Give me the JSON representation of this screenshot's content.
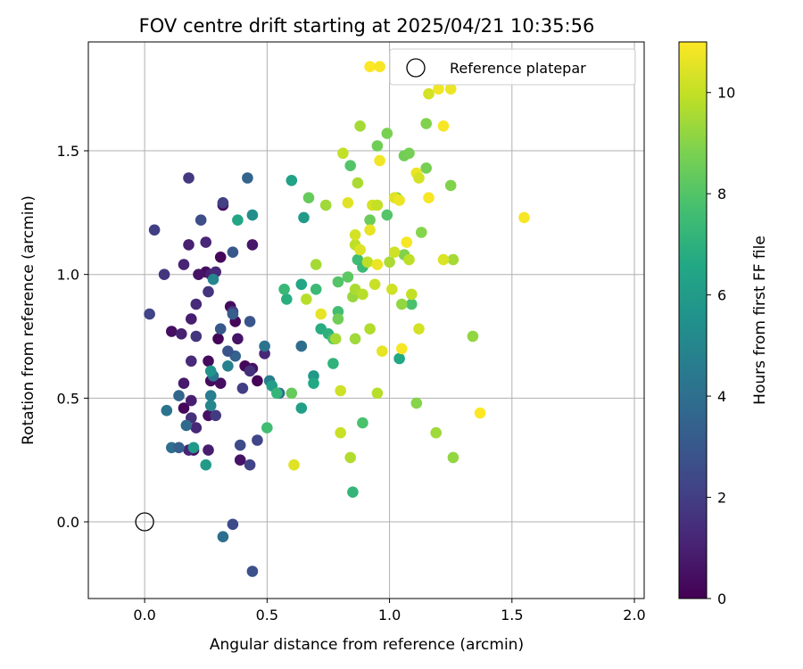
{
  "chart_data": {
    "type": "scatter",
    "title": "FOV centre drift starting at 2025/04/21 10:35:56",
    "xlabel": "Angular distance from reference (arcmin)",
    "ylabel": "Rotation from reference (arcmin)",
    "xlim": [
      -0.23,
      2.04
    ],
    "ylim": [
      -0.31,
      1.94
    ],
    "xticks": [
      0.0,
      0.5,
      1.0,
      1.5,
      2.0
    ],
    "xtick_labels": [
      "0.0",
      "0.5",
      "1.0",
      "1.5",
      "2.0"
    ],
    "yticks": [
      0.0,
      0.5,
      1.0,
      1.5
    ],
    "ytick_labels": [
      "0.0",
      "0.5",
      "1.0",
      "1.5"
    ],
    "grid": true,
    "legend": {
      "position": "top-right",
      "entries": [
        "Reference platepar"
      ]
    },
    "reference_point": {
      "x": 0.0,
      "y": 0.0,
      "label": "Reference platepar"
    },
    "colorbar": {
      "label": "Hours from first FF file",
      "min": 0,
      "max": 11,
      "ticks": [
        0,
        2,
        4,
        6,
        8,
        10
      ],
      "colormap": "viridis"
    },
    "points": [
      {
        "x": 0.32,
        "y": 1.28,
        "c": 0.3
      },
      {
        "x": 0.31,
        "y": 1.07,
        "c": 0.2
      },
      {
        "x": 0.25,
        "y": 1.01,
        "c": 0.4
      },
      {
        "x": 0.22,
        "y": 1.0,
        "c": 0.6
      },
      {
        "x": 0.27,
        "y": 1.0,
        "c": 1.0
      },
      {
        "x": 0.35,
        "y": 0.87,
        "c": 0.3
      },
      {
        "x": 0.37,
        "y": 0.81,
        "c": 0.2
      },
      {
        "x": 0.11,
        "y": 0.77,
        "c": 0.4
      },
      {
        "x": 0.3,
        "y": 0.74,
        "c": 0.1
      },
      {
        "x": 0.38,
        "y": 0.74,
        "c": 0.6
      },
      {
        "x": 0.41,
        "y": 0.63,
        "c": 0.2
      },
      {
        "x": 0.26,
        "y": 0.65,
        "c": 0.3
      },
      {
        "x": 0.44,
        "y": 0.62,
        "c": 0.5
      },
      {
        "x": 0.46,
        "y": 0.57,
        "c": 0.1
      },
      {
        "x": 0.27,
        "y": 0.57,
        "c": 0.3
      },
      {
        "x": 0.31,
        "y": 0.56,
        "c": 0.4
      },
      {
        "x": 0.16,
        "y": 0.46,
        "c": 0.2
      },
      {
        "x": 0.16,
        "y": 0.56,
        "c": 0.8
      },
      {
        "x": 0.2,
        "y": 0.29,
        "c": 0.4
      },
      {
        "x": 0.18,
        "y": 0.29,
        "c": 1.1
      },
      {
        "x": 0.26,
        "y": 0.29,
        "c": 0.9
      },
      {
        "x": 0.39,
        "y": 0.25,
        "c": 0.6
      },
      {
        "x": 0.26,
        "y": 0.43,
        "c": 0.5
      },
      {
        "x": 0.19,
        "y": 0.49,
        "c": 0.9
      },
      {
        "x": 0.19,
        "y": 0.42,
        "c": 1.5
      },
      {
        "x": 0.21,
        "y": 0.38,
        "c": 1.2
      },
      {
        "x": 0.15,
        "y": 0.76,
        "c": 1.0
      },
      {
        "x": 0.19,
        "y": 0.82,
        "c": 0.9
      },
      {
        "x": 0.21,
        "y": 0.88,
        "c": 1.3
      },
      {
        "x": 0.16,
        "y": 1.04,
        "c": 1.1
      },
      {
        "x": 0.18,
        "y": 1.12,
        "c": 1.0
      },
      {
        "x": 0.25,
        "y": 1.13,
        "c": 1.2
      },
      {
        "x": 0.29,
        "y": 1.01,
        "c": 1.3
      },
      {
        "x": 0.44,
        "y": 1.12,
        "c": 0.7
      },
      {
        "x": 0.26,
        "y": 0.93,
        "c": 1.6
      },
      {
        "x": 0.19,
        "y": 0.65,
        "c": 1.3
      },
      {
        "x": 0.21,
        "y": 0.75,
        "c": 1.7
      },
      {
        "x": 0.36,
        "y": 0.85,
        "c": 1.8
      },
      {
        "x": 0.43,
        "y": 0.61,
        "c": 1.5
      },
      {
        "x": 0.49,
        "y": 0.68,
        "c": 1.2
      },
      {
        "x": 0.29,
        "y": 0.43,
        "c": 1.9
      },
      {
        "x": 0.46,
        "y": 0.33,
        "c": 2.3
      },
      {
        "x": 0.43,
        "y": 0.23,
        "c": 2.2
      },
      {
        "x": 0.39,
        "y": 0.31,
        "c": 2.5
      },
      {
        "x": 0.4,
        "y": 0.54,
        "c": 2.0
      },
      {
        "x": 0.08,
        "y": 1.0,
        "c": 1.7
      },
      {
        "x": 0.04,
        "y": 1.18,
        "c": 2.0
      },
      {
        "x": 0.02,
        "y": 0.84,
        "c": 2.2
      },
      {
        "x": 0.18,
        "y": 1.39,
        "c": 1.8
      },
      {
        "x": 0.23,
        "y": 1.22,
        "c": 2.6
      },
      {
        "x": 0.32,
        "y": 1.29,
        "c": 2.1
      },
      {
        "x": 0.43,
        "y": 0.81,
        "c": 2.9
      },
      {
        "x": 0.36,
        "y": 0.84,
        "c": 3.2
      },
      {
        "x": 0.31,
        "y": 0.78,
        "c": 3.0
      },
      {
        "x": 0.37,
        "y": 0.67,
        "c": 3.4
      },
      {
        "x": 0.34,
        "y": 0.69,
        "c": 2.8
      },
      {
        "x": 0.36,
        "y": 1.09,
        "c": 3.0
      },
      {
        "x": 0.42,
        "y": 1.39,
        "c": 3.5
      },
      {
        "x": 0.36,
        "y": -0.01,
        "c": 2.5
      },
      {
        "x": 0.44,
        "y": -0.2,
        "c": 2.7
      },
      {
        "x": 0.32,
        "y": -0.06,
        "c": 4.0
      },
      {
        "x": 0.11,
        "y": 0.3,
        "c": 4.0
      },
      {
        "x": 0.14,
        "y": 0.3,
        "c": 3.3
      },
      {
        "x": 0.17,
        "y": 0.39,
        "c": 3.8
      },
      {
        "x": 0.14,
        "y": 0.51,
        "c": 3.6
      },
      {
        "x": 0.09,
        "y": 0.45,
        "c": 4.2
      },
      {
        "x": 0.27,
        "y": 0.51,
        "c": 4.6
      },
      {
        "x": 0.27,
        "y": 0.47,
        "c": 5.0
      },
      {
        "x": 0.28,
        "y": 0.59,
        "c": 4.3
      },
      {
        "x": 0.34,
        "y": 0.63,
        "c": 4.8
      },
      {
        "x": 0.49,
        "y": 0.71,
        "c": 4.2
      },
      {
        "x": 0.28,
        "y": 0.98,
        "c": 5.0
      },
      {
        "x": 0.51,
        "y": 0.57,
        "c": 4.6
      },
      {
        "x": 0.55,
        "y": 0.52,
        "c": 3.8
      },
      {
        "x": 0.64,
        "y": 0.71,
        "c": 3.9
      },
      {
        "x": 0.44,
        "y": 1.24,
        "c": 5.4
      },
      {
        "x": 0.27,
        "y": 0.61,
        "c": 5.6
      },
      {
        "x": 0.25,
        "y": 0.23,
        "c": 6.0
      },
      {
        "x": 0.2,
        "y": 0.3,
        "c": 5.9
      },
      {
        "x": 0.38,
        "y": 1.22,
        "c": 6.5
      },
      {
        "x": 0.52,
        "y": 0.55,
        "c": 6.1
      },
      {
        "x": 0.6,
        "y": 1.38,
        "c": 6.3
      },
      {
        "x": 0.64,
        "y": 0.96,
        "c": 6.5
      },
      {
        "x": 0.64,
        "y": 0.46,
        "c": 6.2
      },
      {
        "x": 0.65,
        "y": 1.23,
        "c": 6.0
      },
      {
        "x": 0.69,
        "y": 0.59,
        "c": 5.9
      },
      {
        "x": 0.69,
        "y": 0.56,
        "c": 6.6
      },
      {
        "x": 0.58,
        "y": 0.9,
        "c": 6.9
      },
      {
        "x": 0.57,
        "y": 0.94,
        "c": 7.3
      },
      {
        "x": 0.7,
        "y": 0.94,
        "c": 7.4
      },
      {
        "x": 0.72,
        "y": 0.78,
        "c": 6.8
      },
      {
        "x": 0.75,
        "y": 0.76,
        "c": 7.0
      },
      {
        "x": 0.77,
        "y": 0.74,
        "c": 7.8
      },
      {
        "x": 0.77,
        "y": 0.64,
        "c": 7.1
      },
      {
        "x": 0.79,
        "y": 0.85,
        "c": 7.6
      },
      {
        "x": 0.5,
        "y": 0.38,
        "c": 7.6
      },
      {
        "x": 0.54,
        "y": 0.52,
        "c": 7.2
      },
      {
        "x": 0.6,
        "y": 0.52,
        "c": 8.4
      },
      {
        "x": 0.67,
        "y": 1.31,
        "c": 8.4
      },
      {
        "x": 0.79,
        "y": 0.97,
        "c": 8.0
      },
      {
        "x": 0.83,
        "y": 0.99,
        "c": 8.2
      },
      {
        "x": 0.84,
        "y": 1.44,
        "c": 8.0
      },
      {
        "x": 0.87,
        "y": 1.06,
        "c": 7.5
      },
      {
        "x": 0.89,
        "y": 1.03,
        "c": 7.4
      },
      {
        "x": 0.85,
        "y": 0.12,
        "c": 7.2
      },
      {
        "x": 0.89,
        "y": 0.4,
        "c": 7.8
      },
      {
        "x": 1.04,
        "y": 0.66,
        "c": 6.6
      },
      {
        "x": 1.09,
        "y": 0.88,
        "c": 7.8
      },
      {
        "x": 0.99,
        "y": 1.57,
        "c": 8.8
      },
      {
        "x": 0.95,
        "y": 1.52,
        "c": 8.6
      },
      {
        "x": 0.92,
        "y": 1.22,
        "c": 8.5
      },
      {
        "x": 0.99,
        "y": 1.24,
        "c": 8.0
      },
      {
        "x": 1.03,
        "y": 1.31,
        "c": 8.9
      },
      {
        "x": 1.06,
        "y": 1.48,
        "c": 8.6
      },
      {
        "x": 1.08,
        "y": 1.49,
        "c": 8.7
      },
      {
        "x": 1.15,
        "y": 1.43,
        "c": 8.7
      },
      {
        "x": 1.15,
        "y": 1.61,
        "c": 8.9
      },
      {
        "x": 1.25,
        "y": 1.36,
        "c": 8.9
      },
      {
        "x": 1.13,
        "y": 1.17,
        "c": 9.0
      },
      {
        "x": 1.06,
        "y": 1.08,
        "c": 8.9
      },
      {
        "x": 1.05,
        "y": 0.88,
        "c": 9.2
      },
      {
        "x": 1.11,
        "y": 0.48,
        "c": 9.0
      },
      {
        "x": 1.19,
        "y": 0.36,
        "c": 9.4
      },
      {
        "x": 1.26,
        "y": 0.26,
        "c": 9.2
      },
      {
        "x": 1.26,
        "y": 1.06,
        "c": 9.5
      },
      {
        "x": 1.34,
        "y": 0.75,
        "c": 9.2
      },
      {
        "x": 0.88,
        "y": 1.6,
        "c": 9.5
      },
      {
        "x": 0.87,
        "y": 1.37,
        "c": 9.6
      },
      {
        "x": 0.74,
        "y": 1.28,
        "c": 9.4
      },
      {
        "x": 0.66,
        "y": 0.9,
        "c": 9.8
      },
      {
        "x": 0.7,
        "y": 1.04,
        "c": 9.5
      },
      {
        "x": 0.78,
        "y": 0.74,
        "c": 9.5
      },
      {
        "x": 0.79,
        "y": 0.82,
        "c": 8.6
      },
      {
        "x": 0.86,
        "y": 0.74,
        "c": 9.4
      },
      {
        "x": 0.85,
        "y": 0.91,
        "c": 9.3
      },
      {
        "x": 0.86,
        "y": 0.94,
        "c": 9.6
      },
      {
        "x": 0.89,
        "y": 0.92,
        "c": 9.8
      },
      {
        "x": 0.92,
        "y": 0.78,
        "c": 9.7
      },
      {
        "x": 0.95,
        "y": 0.52,
        "c": 9.8
      },
      {
        "x": 0.84,
        "y": 0.26,
        "c": 9.7
      },
      {
        "x": 0.8,
        "y": 0.36,
        "c": 10.1
      },
      {
        "x": 0.8,
        "y": 0.53,
        "c": 10.2
      },
      {
        "x": 0.61,
        "y": 0.23,
        "c": 10.5
      },
      {
        "x": 0.72,
        "y": 0.84,
        "c": 10.6
      },
      {
        "x": 0.81,
        "y": 1.49,
        "c": 10.0
      },
      {
        "x": 0.83,
        "y": 1.29,
        "c": 10.5
      },
      {
        "x": 0.86,
        "y": 1.12,
        "c": 9.9
      },
      {
        "x": 0.86,
        "y": 1.16,
        "c": 10.3
      },
      {
        "x": 0.88,
        "y": 1.1,
        "c": 10.4
      },
      {
        "x": 0.91,
        "y": 1.05,
        "c": 9.9
      },
      {
        "x": 0.92,
        "y": 1.18,
        "c": 10.6
      },
      {
        "x": 0.93,
        "y": 1.28,
        "c": 10.3
      },
      {
        "x": 0.95,
        "y": 1.28,
        "c": 10.0
      },
      {
        "x": 0.94,
        "y": 0.96,
        "c": 10.1
      },
      {
        "x": 0.95,
        "y": 1.04,
        "c": 10.7
      },
      {
        "x": 0.96,
        "y": 1.46,
        "c": 10.8
      },
      {
        "x": 0.97,
        "y": 0.69,
        "c": 10.6
      },
      {
        "x": 1.0,
        "y": 1.05,
        "c": 9.6
      },
      {
        "x": 1.01,
        "y": 0.94,
        "c": 10.2
      },
      {
        "x": 1.02,
        "y": 1.09,
        "c": 10.2
      },
      {
        "x": 1.02,
        "y": 1.31,
        "c": 10.5
      },
      {
        "x": 1.04,
        "y": 1.3,
        "c": 10.7
      },
      {
        "x": 1.05,
        "y": 0.7,
        "c": 10.9
      },
      {
        "x": 1.07,
        "y": 1.13,
        "c": 10.9
      },
      {
        "x": 1.08,
        "y": 1.06,
        "c": 9.9
      },
      {
        "x": 1.09,
        "y": 0.92,
        "c": 10.0
      },
      {
        "x": 1.11,
        "y": 1.41,
        "c": 10.7
      },
      {
        "x": 1.12,
        "y": 1.39,
        "c": 10.3
      },
      {
        "x": 1.12,
        "y": 0.78,
        "c": 10.3
      },
      {
        "x": 1.16,
        "y": 1.73,
        "c": 10.3
      },
      {
        "x": 1.16,
        "y": 1.31,
        "c": 10.9
      },
      {
        "x": 1.2,
        "y": 1.75,
        "c": 10.8
      },
      {
        "x": 1.22,
        "y": 1.06,
        "c": 10.4
      },
      {
        "x": 1.22,
        "y": 1.6,
        "c": 10.9
      },
      {
        "x": 1.25,
        "y": 1.75,
        "c": 10.7
      },
      {
        "x": 0.92,
        "y": 1.84,
        "c": 11.0
      },
      {
        "x": 0.96,
        "y": 1.84,
        "c": 10.9
      },
      {
        "x": 1.37,
        "y": 0.44,
        "c": 11.0
      },
      {
        "x": 1.55,
        "y": 1.23,
        "c": 10.9
      }
    ]
  }
}
